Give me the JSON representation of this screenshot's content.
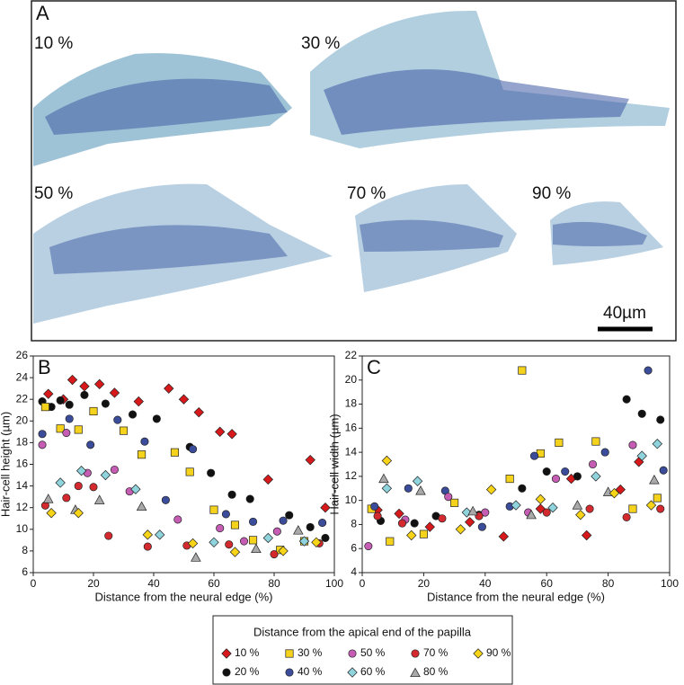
{
  "panel_a": {
    "label": "A",
    "sections": [
      "10 %",
      "30 %",
      "50 %",
      "70 %",
      "90 %"
    ],
    "scale_bar": "40µm"
  },
  "legend": {
    "title": "Distance from the apical end of the papilla"
  },
  "chart_data": [
    {
      "type": "scatter",
      "panel_label": "B",
      "y_label": "Hair-cell height (µm)",
      "x_label": "Distance from the neural edge (%)",
      "xlim": [
        0,
        100
      ],
      "xticks": [
        0,
        20,
        40,
        60,
        80,
        100
      ],
      "ylim": [
        6,
        26
      ],
      "yticks": [
        6,
        8,
        10,
        12,
        14,
        16,
        18,
        20,
        22,
        24,
        26
      ],
      "series": [
        {
          "name": "10 %",
          "color": "#d7191c",
          "marker": "diamond",
          "x": [
            5,
            10,
            13,
            17,
            22,
            27,
            35,
            45,
            50,
            55,
            62,
            66,
            78,
            92,
            97
          ],
          "values": [
            22.5,
            22,
            23.8,
            23.2,
            23.4,
            22.6,
            21.8,
            23,
            22,
            20.8,
            19,
            18.8,
            14.6,
            16.4,
            12
          ]
        },
        {
          "name": "20 %",
          "color": "#111111",
          "marker": "circle",
          "x": [
            3,
            6,
            9,
            12,
            17,
            24,
            33,
            41,
            52,
            59,
            66,
            72,
            85,
            92,
            97
          ],
          "values": [
            21.8,
            21.3,
            21.9,
            21.5,
            22.4,
            21.6,
            20.6,
            20.2,
            17.6,
            15.2,
            13.2,
            12.8,
            11.3,
            10.2,
            9.2
          ]
        },
        {
          "name": "30 %",
          "color": "#f5d31c",
          "marker": "square",
          "x": [
            4,
            9,
            15,
            20,
            30,
            36,
            47,
            52,
            60,
            67,
            73,
            82,
            90
          ],
          "values": [
            21.3,
            19.3,
            19.2,
            20.9,
            19.1,
            16.9,
            17.1,
            15.3,
            11.8,
            10.4,
            9,
            8.1,
            8.9
          ]
        },
        {
          "name": "40 %",
          "color": "#3b4c9b",
          "marker": "circle",
          "x": [
            3,
            12,
            19,
            28,
            37,
            44,
            53,
            64,
            73,
            83,
            96
          ],
          "values": [
            18.8,
            20.2,
            17.8,
            20.1,
            18.1,
            12.7,
            17.4,
            11.4,
            10.7,
            10.8,
            10.6
          ]
        },
        {
          "name": "50 %",
          "color": "#c45db3",
          "marker": "circle",
          "x": [
            3,
            11,
            18,
            27,
            32,
            48,
            62,
            70,
            81
          ],
          "values": [
            17.8,
            18.9,
            15.2,
            15.5,
            13.5,
            10.9,
            10.1,
            8.9,
            9.8
          ]
        },
        {
          "name": "60 %",
          "color": "#8fd3dc",
          "marker": "diamond",
          "x": [
            9,
            16,
            24,
            34,
            42,
            60,
            78,
            90
          ],
          "values": [
            14.3,
            15.4,
            15,
            13.7,
            9.5,
            8.8,
            9.2,
            8.9
          ]
        },
        {
          "name": "70 %",
          "color": "#d42a2f",
          "marker": "circle",
          "x": [
            4,
            11,
            15,
            20,
            25,
            38,
            51,
            65,
            80,
            95
          ],
          "values": [
            12.2,
            12.9,
            14,
            13.9,
            9.4,
            8.4,
            8.5,
            8.6,
            7.7,
            8.7
          ]
        },
        {
          "name": "80 %",
          "color": "#a9a9a9",
          "marker": "triangle",
          "x": [
            5,
            14,
            22,
            36,
            54,
            74,
            88
          ],
          "values": [
            12.8,
            11.8,
            12.7,
            12.1,
            7.4,
            8.2,
            9.9
          ]
        },
        {
          "name": "90 %",
          "color": "#f7d417",
          "marker": "diamond",
          "x": [
            6,
            15,
            38,
            53,
            67,
            83,
            94
          ],
          "values": [
            11.5,
            11.5,
            9.5,
            8.7,
            7.9,
            8,
            8.8
          ]
        }
      ]
    },
    {
      "type": "scatter",
      "panel_label": "C",
      "y_label": "Hair-cell width (µm)",
      "x_label": "Distance from the neural edge (%)",
      "xlim": [
        0,
        100
      ],
      "xticks": [
        0,
        20,
        40,
        60,
        80,
        100
      ],
      "ylim": [
        4,
        22
      ],
      "yticks": [
        4,
        6,
        8,
        10,
        12,
        14,
        16,
        18,
        20,
        22
      ],
      "series": [
        {
          "name": "10 %",
          "color": "#d7191c",
          "marker": "diamond",
          "x": [
            5,
            12,
            22,
            35,
            46,
            58,
            68,
            73,
            84,
            90
          ],
          "values": [
            9.2,
            8.9,
            7.8,
            8.2,
            7,
            9.3,
            11.8,
            7.1,
            10.9,
            13.2
          ]
        },
        {
          "name": "20 %",
          "color": "#111111",
          "marker": "circle",
          "x": [
            6,
            17,
            24,
            38,
            52,
            60,
            70,
            86,
            91,
            97
          ],
          "values": [
            8.3,
            8.1,
            8.7,
            8.8,
            11,
            12.4,
            12,
            18.4,
            17.2,
            16.7
          ]
        },
        {
          "name": "30 %",
          "color": "#f5d31c",
          "marker": "square",
          "x": [
            3,
            9,
            20,
            30,
            48,
            52,
            58,
            64,
            76,
            88,
            96
          ],
          "values": [
            9.3,
            6.6,
            7.2,
            9.8,
            11.8,
            20.8,
            13.9,
            14.8,
            14.9,
            9.3,
            10.2
          ]
        },
        {
          "name": "40 %",
          "color": "#3b4c9b",
          "marker": "circle",
          "x": [
            4,
            15,
            27,
            39,
            48,
            56,
            66,
            79,
            93,
            98
          ],
          "values": [
            9.5,
            11,
            10.8,
            7.8,
            9.5,
            13.7,
            12.4,
            14,
            20.8,
            12.5
          ]
        },
        {
          "name": "50 %",
          "color": "#c45db3",
          "marker": "circle",
          "x": [
            2,
            14,
            28,
            40,
            54,
            63,
            75,
            88
          ],
          "values": [
            6.2,
            8.4,
            10.3,
            9,
            9,
            11.8,
            13,
            14.6
          ]
        },
        {
          "name": "60 %",
          "color": "#8fd3dc",
          "marker": "diamond",
          "x": [
            8,
            18,
            34,
            50,
            62,
            76,
            91,
            96
          ],
          "values": [
            11,
            11.6,
            9,
            9.6,
            9.4,
            12,
            13.7,
            14.7
          ]
        },
        {
          "name": "70 %",
          "color": "#d42a2f",
          "marker": "circle",
          "x": [
            5,
            13,
            26,
            38,
            60,
            74,
            86,
            97
          ],
          "values": [
            8.7,
            8.1,
            8.5,
            8.7,
            9,
            9.3,
            8.6,
            9.3
          ]
        },
        {
          "name": "80 %",
          "color": "#a9a9a9",
          "marker": "triangle",
          "x": [
            7,
            19,
            36,
            55,
            70,
            80,
            95
          ],
          "values": [
            11.8,
            10.8,
            9.1,
            8.8,
            9.6,
            10.7,
            11.7
          ]
        },
        {
          "name": "90 %",
          "color": "#f7d417",
          "marker": "diamond",
          "x": [
            8,
            16,
            32,
            42,
            58,
            71,
            82,
            94
          ],
          "values": [
            13.3,
            7.1,
            7.6,
            10.9,
            10.1,
            8.8,
            10.6,
            9.6
          ]
        }
      ]
    }
  ]
}
